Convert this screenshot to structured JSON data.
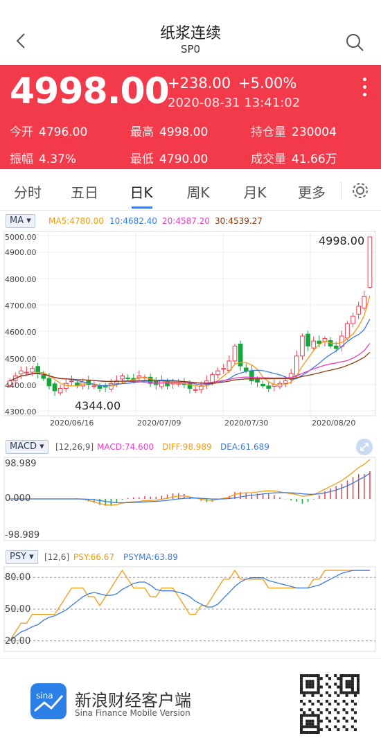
{
  "header": {
    "title": "纸浆连续",
    "subtitle": "SP0"
  },
  "quote": {
    "price": "4998.00",
    "change": "+238.00",
    "change_pct": "+5.00%",
    "time": "2020-08-31 13:41:02",
    "stats": [
      {
        "label": "今开",
        "value": "4796.00"
      },
      {
        "label": "最高",
        "value": "4998.00"
      },
      {
        "label": "持仓量",
        "value": "230004"
      },
      {
        "label": "振幅",
        "value": "4.37%"
      },
      {
        "label": "最低",
        "value": "4790.00"
      },
      {
        "label": "成交量",
        "value": "41.66万"
      }
    ]
  },
  "tabs": [
    "分时",
    "五日",
    "日K",
    "周K",
    "月K",
    "更多"
  ],
  "active_tab": "日K",
  "colors": {
    "up": "#f23a4a",
    "down": "#15a63b",
    "ma5": "#f59a0d",
    "ma10": "#3a7ae0",
    "ma20": "#e83fc0",
    "ma30": "#8c3a0f"
  },
  "ma_legend": {
    "badge": "MA",
    "ma5": "MA5:4780.00",
    "ma10": "10:4682.40",
    "ma20": "20:4587.20",
    "ma30": "30:4539.27"
  },
  "kline": {
    "y_ticks": [
      "5000.00",
      "4900.00",
      "4800.00",
      "4700.00",
      "4600.00",
      "4500.00",
      "4400.00",
      "4300.00"
    ],
    "dates": [
      "2020/06/16",
      "2020/07/09",
      "2020/07/30",
      "2020/08/20"
    ],
    "max_label": "4998.00",
    "min_label": "4344.00"
  },
  "macd_legend": {
    "badge": "MACD",
    "params": "[12,26,9]",
    "macd": "MACD:74.600",
    "diff": "DIFF:98.989",
    "dea": "DEA:61.689",
    "y_top": "98.989",
    "y_mid": "0.000",
    "y_bot": "-98.989"
  },
  "psy_legend": {
    "badge": "PSY",
    "params": "[12,6]",
    "psy": "PSY:66.67",
    "psyma": "PSYMA:63.89",
    "y_ticks": [
      "80.00",
      "50.00",
      "20.00"
    ]
  },
  "footer": {
    "brand": "新浪财经客户端",
    "brand_en": "Sina Finance Mobile Version",
    "logo_text": "sina"
  },
  "chart_data": [
    {
      "type": "candlestick",
      "title": "",
      "ylim": [
        4280,
        5020
      ],
      "x": [
        "2020/06/16",
        "2020/07/09",
        "2020/07/30",
        "2020/08/20"
      ],
      "series": [
        {
          "name": "MA5",
          "last": 4780.0
        },
        {
          "name": "MA10",
          "last": 4682.4
        },
        {
          "name": "MA20",
          "last": 4587.2
        },
        {
          "name": "MA30",
          "last": 4539.27
        }
      ],
      "close_series": [
        4420,
        4440,
        4460,
        4455,
        4470,
        4450,
        4430,
        4400,
        4380,
        4390,
        4410,
        4420,
        4400,
        4415,
        4405,
        4400,
        4390,
        4395,
        4410,
        4420,
        4440,
        4430,
        4425,
        4440,
        4435,
        4410,
        4405,
        4420,
        4400,
        4415,
        4410,
        4405,
        4390,
        4385,
        4400,
        4420,
        4445,
        4460,
        4470,
        4500,
        4560,
        4480,
        4460,
        4420,
        4415,
        4400,
        4390,
        4405,
        4410,
        4420,
        4450,
        4520,
        4600,
        4560,
        4580,
        4570,
        4590,
        4560,
        4550,
        4600,
        4650,
        4680,
        4720,
        4760,
        4998
      ],
      "last": 4998.0,
      "high": 4998.0,
      "low": 4344.0
    },
    {
      "type": "line",
      "title": "",
      "series": [
        {
          "name": "DIFF",
          "last": 98.989
        },
        {
          "name": "DEA",
          "last": 61.689
        },
        {
          "name": "MACD",
          "last": 74.6
        }
      ],
      "ylim": [
        -98.989,
        98.989
      ]
    },
    {
      "type": "line",
      "title": "",
      "series": [
        {
          "name": "PSY",
          "last": 66.67
        },
        {
          "name": "PSYMA",
          "last": 63.89
        }
      ],
      "ylim": [
        10,
        90
      ]
    }
  ]
}
